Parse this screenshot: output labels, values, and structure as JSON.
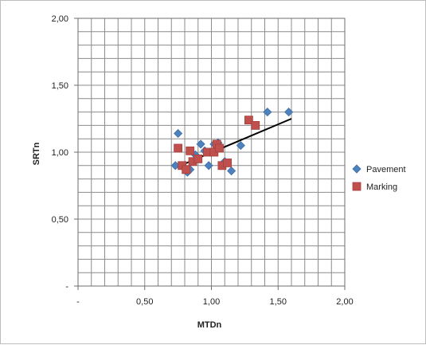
{
  "chart_data": {
    "type": "scatter",
    "title": "",
    "xlabel": "MTDn",
    "ylabel": "SRTn",
    "xlim": [
      0,
      2
    ],
    "ylim": [
      0,
      2
    ],
    "x_ticks": [
      "-",
      "0,50",
      "1,00",
      "1,50",
      "2,00"
    ],
    "y_ticks": [
      "-",
      "0,50",
      "1,00",
      "1,50",
      "2,00"
    ],
    "grid": true,
    "legend_position": "right",
    "series": [
      {
        "name": "Pavement",
        "color": "#4f81bd",
        "marker": "diamond",
        "points": [
          [
            0.73,
            0.9
          ],
          [
            0.75,
            1.14
          ],
          [
            0.78,
            0.9
          ],
          [
            0.82,
            0.85
          ],
          [
            0.84,
            0.87
          ],
          [
            0.88,
            0.98
          ],
          [
            0.92,
            1.06
          ],
          [
            0.95,
            1.01
          ],
          [
            0.98,
            0.9
          ],
          [
            1.02,
            1.06
          ],
          [
            1.05,
            1.07
          ],
          [
            1.1,
            0.93
          ],
          [
            1.15,
            0.86
          ],
          [
            1.22,
            1.05
          ],
          [
            1.42,
            1.3
          ],
          [
            1.58,
            1.3
          ]
        ]
      },
      {
        "name": "Marking",
        "color": "#c0504d",
        "marker": "square",
        "points": [
          [
            0.75,
            1.03
          ],
          [
            0.78,
            0.9
          ],
          [
            0.81,
            0.87
          ],
          [
            0.84,
            1.01
          ],
          [
            0.86,
            0.93
          ],
          [
            0.9,
            0.95
          ],
          [
            0.97,
            1.0
          ],
          [
            1.02,
            1.0
          ],
          [
            1.04,
            1.06
          ],
          [
            1.06,
            1.03
          ],
          [
            1.08,
            0.9
          ],
          [
            1.12,
            0.92
          ],
          [
            1.28,
            1.24
          ],
          [
            1.33,
            1.2
          ]
        ]
      }
    ],
    "trendline": {
      "color": "#000000",
      "points": [
        [
          0.72,
          0.88
        ],
        [
          1.6,
          1.25
        ]
      ]
    }
  }
}
